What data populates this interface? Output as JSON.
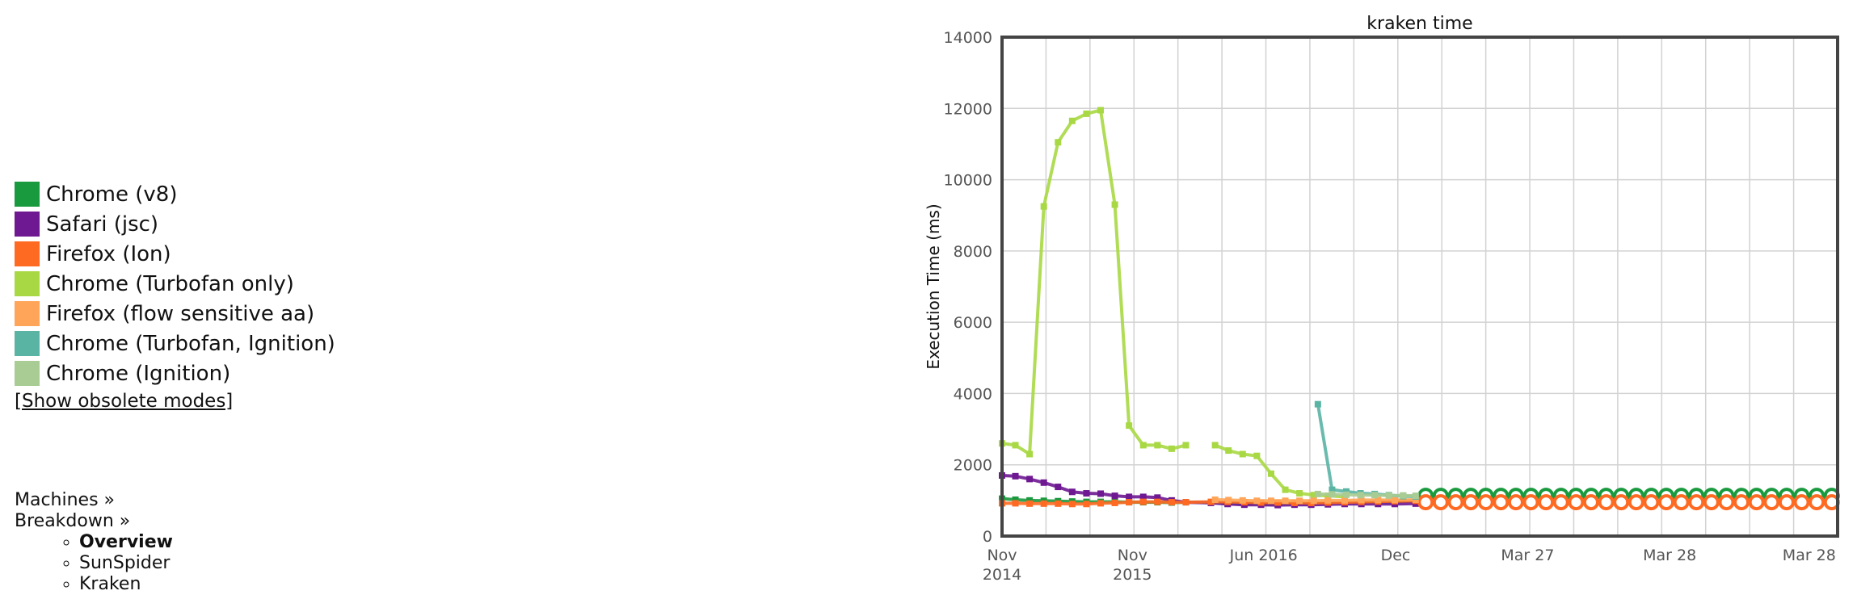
{
  "legend": {
    "items": [
      {
        "label": "Chrome (v8)",
        "color": "#1a9a3f"
      },
      {
        "label": "Safari (jsc)",
        "color": "#6e1891"
      },
      {
        "label": "Firefox (Ion)",
        "color": "#ff6a22"
      },
      {
        "label": "Chrome (Turbofan only)",
        "color": "#a8d843"
      },
      {
        "label": "Firefox (flow sensitive aa)",
        "color": "#ffa55a"
      },
      {
        "label": "Chrome (Turbofan, Ignition)",
        "color": "#5ab4a4"
      },
      {
        "label": "Chrome (Ignition)",
        "color": "#a9cc94"
      }
    ],
    "obsolete_link": "[Show obsolete modes]"
  },
  "nav": {
    "machines": "Machines »",
    "breakdown": "Breakdown »",
    "breakdown_items": [
      {
        "label": "Overview",
        "active": true
      },
      {
        "label": "SunSpider",
        "active": false
      },
      {
        "label": "Kraken",
        "active": false
      }
    ]
  },
  "chart_data": {
    "type": "line",
    "title": "kraken time",
    "xlabel": "",
    "ylabel": "Execution Time (ms)",
    "ylim": [
      0,
      14000
    ],
    "yticks": [
      0,
      2000,
      4000,
      6000,
      8000,
      10000,
      12000,
      14000
    ],
    "x_is_index": true,
    "xlim": [
      0,
      100
    ],
    "xticks": [
      {
        "x": 0,
        "label": [
          "Nov",
          "2014"
        ]
      },
      {
        "x": 15.6,
        "label": [
          "Nov",
          "2015"
        ]
      },
      {
        "x": 31.3,
        "label": [
          "Jun 2016",
          ""
        ]
      },
      {
        "x": 47.1,
        "label": [
          "Dec",
          ""
        ]
      },
      {
        "x": 62.9,
        "label": [
          "Mar 27",
          ""
        ]
      },
      {
        "x": 79.9,
        "label": [
          "Mar 28",
          ""
        ]
      },
      {
        "x": 96.6,
        "label": [
          "Mar 28",
          ""
        ]
      }
    ],
    "grid": true,
    "series": [
      {
        "name": "Chrome (v8)",
        "color": "#1a9a3f",
        "x": [
          0,
          1.6,
          3.3,
          5,
          6.7,
          8.4,
          10.1,
          11.8,
          13.5,
          15.2,
          16.9,
          18.6,
          20.3,
          22,
          25,
          27,
          29,
          31,
          33,
          35,
          37,
          39,
          41,
          43,
          45,
          47,
          49.5
        ],
        "y": [
          1050,
          1020,
          1000,
          990,
          980,
          970,
          960,
          960,
          960,
          950,
          950,
          950,
          940,
          950,
          950,
          920,
          910,
          900,
          900,
          910,
          910,
          930,
          940,
          950,
          960,
          970,
          980
        ]
      },
      {
        "name": "Chrome (v8)",
        "color": "#1a9a3f",
        "marker": "ring",
        "x": [
          50.7,
          52.5,
          54.3,
          56.1,
          57.9,
          59.7,
          61.5,
          63.3,
          65.1,
          66.9,
          68.7,
          70.5,
          72.3,
          74.1,
          75.9,
          77.7,
          79.5,
          81.3,
          83.1,
          84.9,
          86.7,
          88.5,
          90.3,
          92.1,
          93.9,
          95.7,
          97.5,
          99.3
        ],
        "y": [
          1130,
          1130,
          1130,
          1130,
          1130,
          1130,
          1130,
          1130,
          1130,
          1130,
          1130,
          1130,
          1130,
          1130,
          1130,
          1130,
          1130,
          1130,
          1130,
          1130,
          1130,
          1130,
          1130,
          1130,
          1130,
          1130,
          1130,
          1130
        ]
      },
      {
        "name": "Safari (jsc)",
        "color": "#6e1891",
        "x": [
          0,
          1.6,
          3.3,
          5,
          6.7,
          8.4,
          10.1,
          11.8,
          13.5,
          15.2,
          16.9,
          18.6,
          20.3,
          22,
          25,
          27,
          29,
          31,
          33,
          35,
          37,
          39,
          41,
          43,
          45,
          47,
          49.5
        ],
        "y": [
          1700,
          1680,
          1600,
          1500,
          1380,
          1240,
          1200,
          1190,
          1130,
          1100,
          1100,
          1080,
          1000,
          950,
          930,
          900,
          880,
          880,
          870,
          880,
          880,
          890,
          900,
          900,
          900,
          900,
          910
        ]
      },
      {
        "name": "Firefox (Ion)",
        "color": "#ff6a22",
        "x": [
          0,
          1.6,
          3.3,
          5,
          6.7,
          8.4,
          10.1,
          11.8,
          13.5,
          15.2,
          16.9,
          18.6,
          20.3,
          22,
          25,
          27,
          29,
          31,
          33,
          35,
          37,
          39,
          41,
          43,
          45,
          47,
          49.5
        ],
        "y": [
          920,
          920,
          910,
          910,
          910,
          900,
          900,
          920,
          930,
          950,
          960,
          960,
          950,
          950,
          960,
          960,
          950,
          940,
          940,
          930,
          930,
          940,
          950,
          960,
          970,
          980,
          990
        ]
      },
      {
        "name": "Firefox (Ion)",
        "color": "#ff6a22",
        "marker": "ring",
        "x": [
          50.7,
          52.5,
          54.3,
          56.1,
          57.9,
          59.7,
          61.5,
          63.3,
          65.1,
          66.9,
          68.7,
          70.5,
          72.3,
          74.1,
          75.9,
          77.7,
          79.5,
          81.3,
          83.1,
          84.9,
          86.7,
          88.5,
          90.3,
          92.1,
          93.9,
          95.7,
          97.5,
          99.3
        ],
        "y": [
          950,
          950,
          950,
          950,
          950,
          950,
          950,
          950,
          950,
          950,
          950,
          950,
          950,
          950,
          950,
          950,
          950,
          950,
          950,
          950,
          950,
          950,
          950,
          950,
          950,
          950,
          950,
          950
        ]
      },
      {
        "name": "Chrome (Turbofan only)",
        "color": "#a8d843",
        "x": [
          0,
          1.6,
          3.3,
          5,
          6.7,
          8.4,
          10.1,
          11.8,
          13.5,
          15.2,
          16.9,
          18.6,
          20.3,
          22
        ],
        "y": [
          2600,
          2550,
          2300,
          9250,
          11050,
          11650,
          11850,
          11950,
          9300,
          3100,
          2550,
          2550,
          2450,
          2550
        ]
      },
      {
        "name": "Chrome (Turbofan only)",
        "color": "#a8d843",
        "x": [
          25.5,
          27.1,
          28.8,
          30.5,
          32.2,
          33.9,
          35.6,
          37.3,
          39,
          41
        ],
        "y": [
          2550,
          2400,
          2300,
          2250,
          1750,
          1300,
          1200,
          1150,
          1130,
          1100
        ]
      },
      {
        "name": "Firefox (flow sensitive aa)",
        "color": "#ffa55a",
        "x": [
          25.5,
          27.1,
          28.8,
          30.5,
          32.2,
          33.9,
          35.6,
          37.3,
          39,
          41,
          43,
          45,
          47,
          49.5
        ],
        "y": [
          1020,
          1010,
          1000,
          990,
          990,
          990,
          990,
          990,
          1000,
          1000,
          1010,
          1010,
          1010,
          1020
        ]
      },
      {
        "name": "Chrome (Turbofan, Ignition)",
        "color": "#5ab4a4",
        "x": [
          37.8,
          39.5,
          41.2,
          42.9,
          44.6,
          46.3,
          48,
          49.5
        ],
        "y": [
          3700,
          1300,
          1250,
          1200,
          1180,
          1150,
          1120,
          1110
        ]
      },
      {
        "name": "Chrome (Ignition)",
        "color": "#a9cc94",
        "x": [
          37.8,
          39.5,
          41.2,
          42.9,
          44.6,
          46.3,
          48,
          49.5
        ],
        "y": [
          1180,
          1170,
          1160,
          1150,
          1150,
          1140,
          1140,
          1130
        ]
      }
    ]
  }
}
